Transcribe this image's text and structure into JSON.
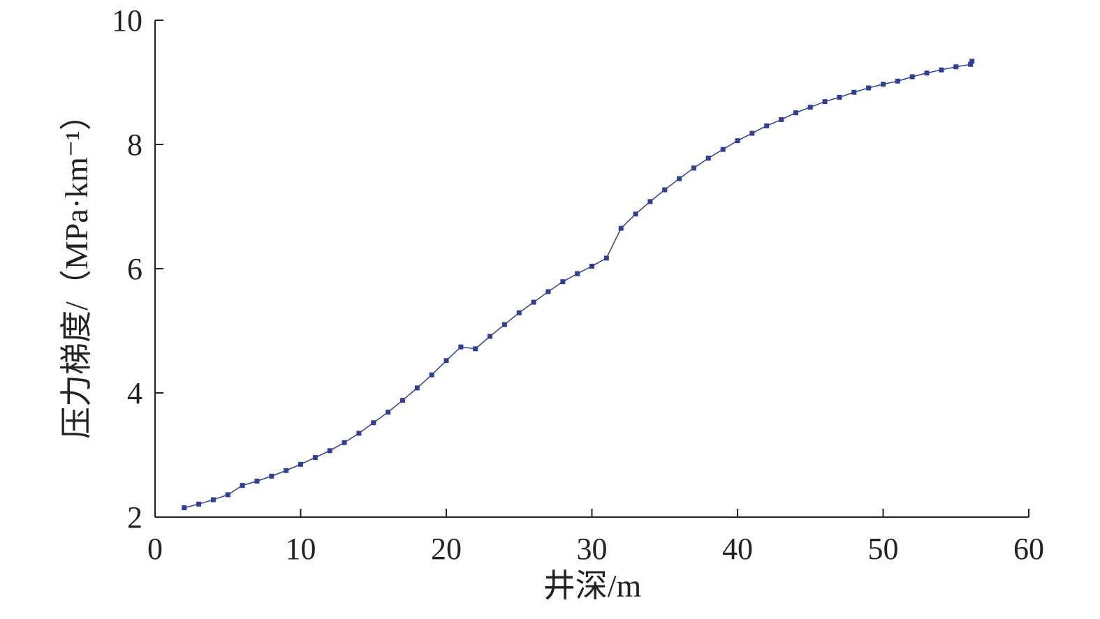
{
  "chart_data": {
    "type": "line",
    "xlabel": "井深/m",
    "ylabel": "压力梯度/（MPa·km⁻¹）",
    "xlim": [
      0,
      60
    ],
    "xticks": [
      0,
      10,
      20,
      30,
      40,
      50,
      60
    ],
    "ylim": [
      2,
      10
    ],
    "yticks": [
      2,
      4,
      6,
      8,
      10
    ],
    "series": [
      {
        "color": "#2f3f98",
        "x": [
          2,
          3,
          4,
          5,
          6,
          7,
          8,
          9,
          10,
          11,
          12,
          13,
          14,
          15,
          16,
          17,
          18,
          19,
          20,
          21,
          22,
          23,
          24,
          25,
          26,
          27,
          28,
          29,
          30,
          31,
          32,
          33,
          34,
          35,
          36,
          37,
          38,
          39,
          40,
          41,
          42,
          43,
          44,
          45,
          46,
          47,
          48,
          49,
          50,
          51,
          52,
          53,
          54,
          55,
          56,
          56.1
        ],
        "values": [
          2.15,
          2.21,
          2.28,
          2.36,
          2.51,
          2.58,
          2.66,
          2.75,
          2.85,
          2.96,
          3.07,
          3.2,
          3.35,
          3.52,
          3.69,
          3.88,
          4.08,
          4.29,
          4.52,
          4.74,
          4.71,
          4.91,
          5.1,
          5.29,
          5.46,
          5.63,
          5.79,
          5.92,
          6.04,
          6.17,
          6.65,
          6.88,
          7.08,
          7.27,
          7.45,
          7.62,
          7.78,
          7.92,
          8.06,
          8.18,
          8.3,
          8.4,
          8.51,
          8.6,
          8.69,
          8.76,
          8.84,
          8.91,
          8.97,
          9.02,
          9.09,
          9.15,
          9.2,
          9.25,
          9.29,
          9.34
        ]
      }
    ]
  }
}
